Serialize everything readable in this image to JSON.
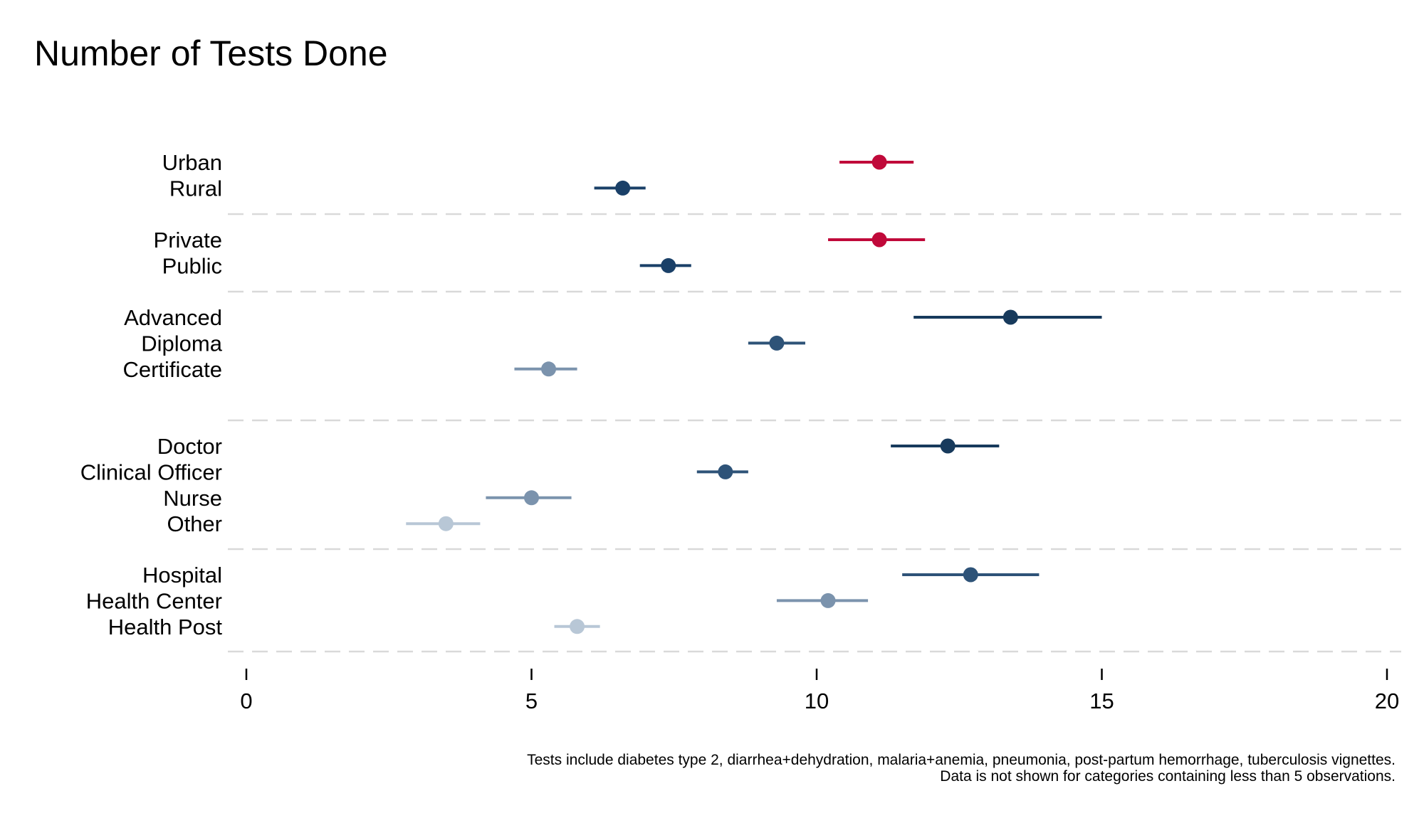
{
  "chart_data": {
    "type": "scatter",
    "title": "Number of Tests Done",
    "xlabel": "",
    "ylabel": "",
    "xlim": [
      0,
      20
    ],
    "xticks": [
      "0",
      "5",
      "10",
      "15",
      "20"
    ],
    "grid": false,
    "legend": "none",
    "groups": [
      {
        "rows": [
          {
            "label": "Urban",
            "value": 11.1,
            "low": 10.4,
            "high": 11.7,
            "color": "#c0093a"
          },
          {
            "label": "Rural",
            "value": 6.6,
            "low": 6.1,
            "high": 7.0,
            "color": "#1a4068"
          }
        ]
      },
      {
        "rows": [
          {
            "label": "Private",
            "value": 11.1,
            "low": 10.2,
            "high": 11.9,
            "color": "#c0093a"
          },
          {
            "label": "Public",
            "value": 7.4,
            "low": 6.9,
            "high": 7.8,
            "color": "#1a4068"
          }
        ]
      },
      {
        "rows": [
          {
            "label": "Advanced",
            "value": 13.4,
            "low": 11.7,
            "high": 15.0,
            "color": "#173a5c"
          },
          {
            "label": "Diploma",
            "value": 9.3,
            "low": 8.8,
            "high": 9.8,
            "color": "#2e5378"
          },
          {
            "label": "Certificate",
            "value": 5.3,
            "low": 4.7,
            "high": 5.8,
            "color": "#7b93ad"
          }
        ]
      },
      {
        "rows": [
          {
            "label": "Doctor",
            "value": 12.3,
            "low": 11.3,
            "high": 13.2,
            "color": "#173a5c"
          },
          {
            "label": "Clinical Officer",
            "value": 8.4,
            "low": 7.9,
            "high": 8.8,
            "color": "#2e5378"
          },
          {
            "label": "Nurse",
            "value": 5.0,
            "low": 4.2,
            "high": 5.7,
            "color": "#7b93ad"
          },
          {
            "label": "Other",
            "value": 3.5,
            "low": 2.8,
            "high": 4.1,
            "color": "#b8c7d6"
          }
        ]
      },
      {
        "rows": [
          {
            "label": "Hospital",
            "value": 12.7,
            "low": 11.5,
            "high": 13.9,
            "color": "#2e5378"
          },
          {
            "label": "Health Center",
            "value": 10.2,
            "low": 9.3,
            "high": 10.9,
            "color": "#7b93ad"
          },
          {
            "label": "Health Post",
            "value": 5.8,
            "low": 5.4,
            "high": 6.2,
            "color": "#b8c7d6"
          }
        ]
      }
    ],
    "notes": [
      "Tests include diabetes type 2, diarrhea+dehydration, malaria+anemia, pneumonia, post-partum hemorrhage, tuberculosis vignettes.",
      "Data is not shown for categories containing less than 5 observations."
    ]
  }
}
